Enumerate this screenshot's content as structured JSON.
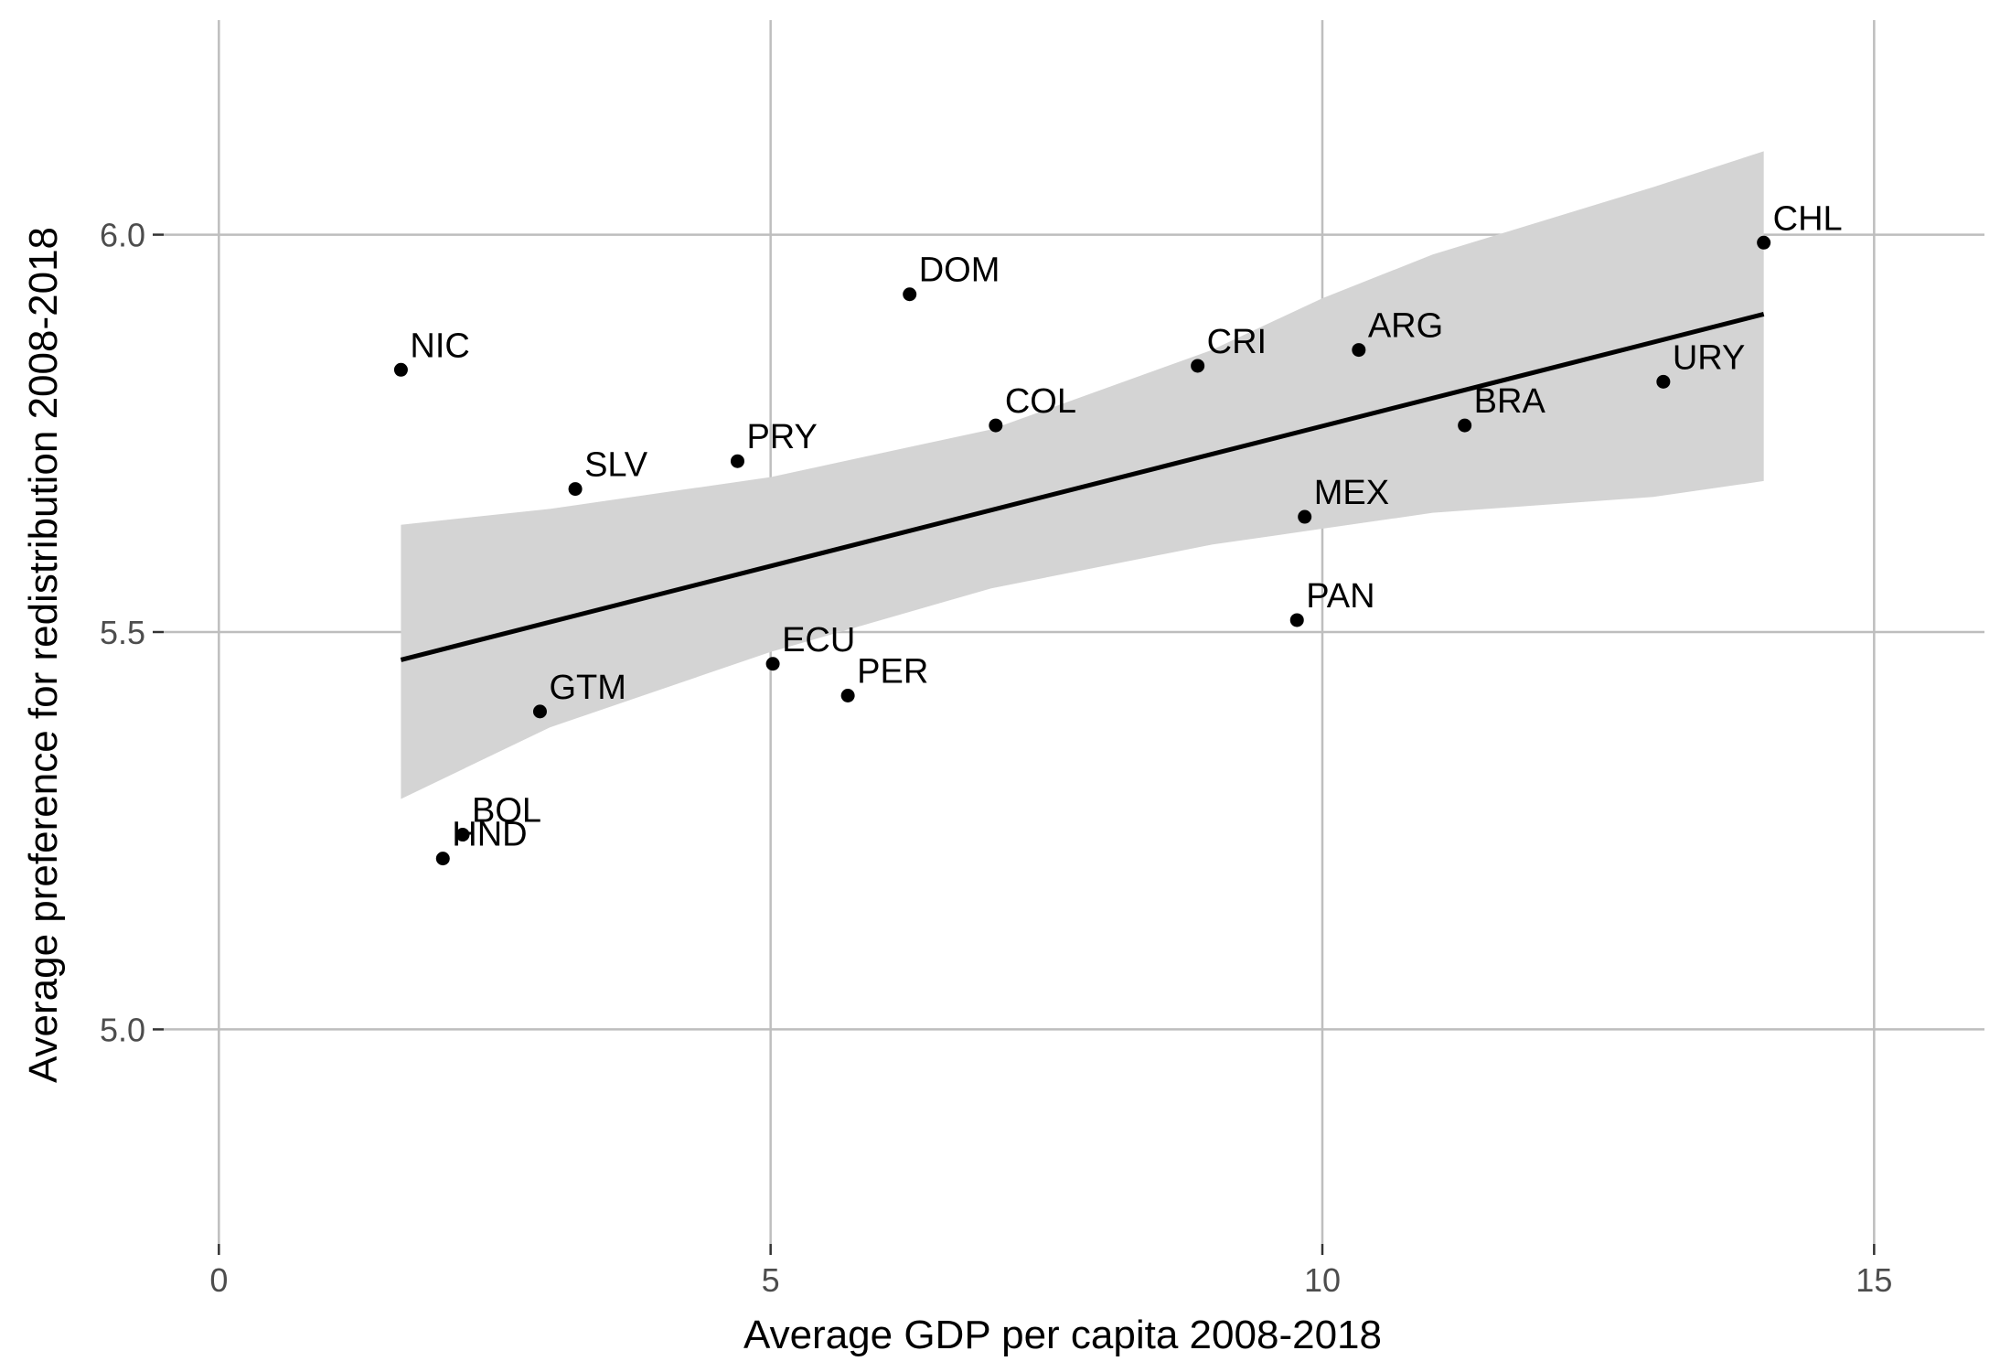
{
  "chart_data": {
    "type": "scatter",
    "title": "",
    "xlabel": "Average GDP per capita 2008-2018",
    "ylabel": "Average preference for redistribution 2008-2018",
    "xlim": [
      -0.5,
      16.0
    ],
    "ylim": [
      4.73,
      6.27
    ],
    "x_ticks": [
      0,
      5,
      10,
      15
    ],
    "x_tick_labels": [
      "0",
      "5",
      "10",
      "15"
    ],
    "y_ticks": [
      5.0,
      5.5,
      6.0
    ],
    "y_tick_labels": [
      "5.0",
      "5.5",
      "6.0"
    ],
    "grid": true,
    "legend": "none",
    "points": [
      {
        "label": "NIC",
        "x": 1.65,
        "y": 5.83
      },
      {
        "label": "SLV",
        "x": 3.23,
        "y": 5.68
      },
      {
        "label": "PRY",
        "x": 4.7,
        "y": 5.715
      },
      {
        "label": "DOM",
        "x": 6.26,
        "y": 5.925
      },
      {
        "label": "COL",
        "x": 7.04,
        "y": 5.76
      },
      {
        "label": "CRI",
        "x": 8.87,
        "y": 5.835
      },
      {
        "label": "ARG",
        "x": 10.33,
        "y": 5.855
      },
      {
        "label": "URY",
        "x": 13.09,
        "y": 5.815
      },
      {
        "label": "CHL",
        "x": 14.0,
        "y": 5.99
      },
      {
        "label": "BRA",
        "x": 11.29,
        "y": 5.76
      },
      {
        "label": "MEX",
        "x": 9.84,
        "y": 5.645
      },
      {
        "label": "PAN",
        "x": 9.77,
        "y": 5.515
      },
      {
        "label": "ECU",
        "x": 5.02,
        "y": 5.46
      },
      {
        "label": "PER",
        "x": 5.7,
        "y": 5.42
      },
      {
        "label": "GTM",
        "x": 2.91,
        "y": 5.4
      },
      {
        "label": "BOL",
        "x": 2.21,
        "y": 5.245
      },
      {
        "label": "HND",
        "x": 2.03,
        "y": 5.215
      }
    ],
    "trend_line": {
      "x": [
        1.65,
        14.0
      ],
      "y": [
        5.465,
        5.9
      ]
    },
    "confidence_band": {
      "x": [
        1.65,
        3.0,
        5.0,
        7.0,
        9.0,
        10.0,
        11.0,
        13.0,
        14.0
      ],
      "upper": [
        5.635,
        5.655,
        5.695,
        5.755,
        5.855,
        5.92,
        5.975,
        6.06,
        6.105
      ],
      "lower": [
        5.29,
        5.38,
        5.475,
        5.555,
        5.61,
        5.63,
        5.65,
        5.67,
        5.69
      ]
    },
    "colors": {
      "point": "#000000",
      "line": "#000000",
      "band": "#d4d4d4",
      "grid": "#bebebe"
    }
  }
}
